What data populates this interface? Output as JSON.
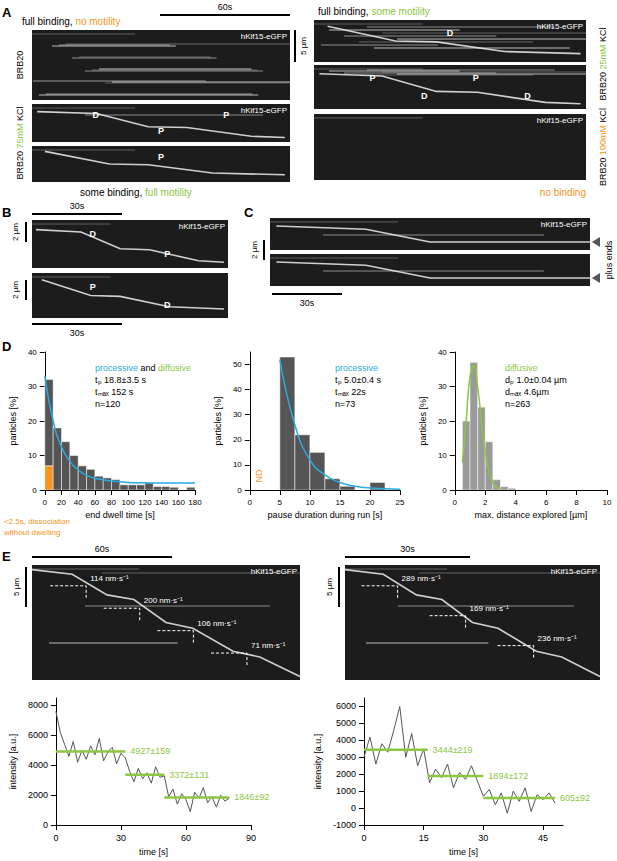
{
  "figure": {
    "A": {
      "letter": "A",
      "time_scale": "60s",
      "space_scale": "5 µm",
      "left_header": [
        {
          "text": "full binding, "
        },
        {
          "text": "no motility",
          "color": "#f7941d"
        }
      ],
      "left_footer": [
        {
          "text": "some binding, "
        },
        {
          "text": "full motility",
          "color": "#8dc63f"
        }
      ],
      "right_header": [
        {
          "text": "full binding, "
        },
        {
          "text": "some motility",
          "color": "#8dc63f"
        }
      ],
      "right_footer": [
        {
          "text": "no binding",
          "color": "#f7941d"
        }
      ],
      "left_conditions": [
        [
          {
            "text": "BRB20"
          }
        ],
        [
          {
            "text": "BRB20 "
          },
          {
            "text": "75mM",
            "color": "#8dc63f"
          },
          {
            "text": " KCl"
          }
        ]
      ],
      "right_conditions": [
        [
          {
            "text": "BRB20 "
          },
          {
            "text": "25mM",
            "color": "#8dc63f"
          },
          {
            "text": " KCl"
          }
        ],
        [
          {
            "text": "BRB20 "
          },
          {
            "text": "100mM",
            "color": "#f7941d"
          },
          {
            "text": " KCl"
          }
        ]
      ],
      "left_kymographs": [
        {
          "label": "hKif15-eGFP",
          "marks": []
        },
        {
          "label": "hKif15-eGFP",
          "marks": [
            "D",
            "P",
            "P"
          ]
        },
        {
          "marks": [
            "P"
          ]
        }
      ],
      "right_kymographs": [
        {
          "label": "hKif15-eGFP",
          "marks": [
            "D"
          ]
        },
        {
          "marks": [
            "P",
            "D",
            "P",
            "D"
          ]
        },
        {
          "label": "hKif15-eGFP",
          "marks": []
        }
      ]
    },
    "B": {
      "letter": "B",
      "time_scale": "30s",
      "space_scale": "2 µm",
      "kymographs": [
        {
          "label": "hKif15-eGFP",
          "marks": [
            "D",
            "P"
          ]
        },
        {
          "marks": [
            "P",
            "D"
          ]
        }
      ]
    },
    "C": {
      "letter": "C",
      "time_scale": "30s",
      "space_scale": "2 µm",
      "end_label": "plus ends",
      "kymographs": [
        {
          "label": "hKif15-eGFP",
          "marks": []
        },
        {
          "marks": []
        }
      ]
    },
    "D": {
      "letter": "D"
    },
    "E": {
      "letter": "E",
      "kymographs": [
        {
          "label": "hKif15-eGFP",
          "time_scale": "60s",
          "space_scale": "5 µm",
          "velocities": [
            "114 nm·s⁻¹",
            "200 nm·s⁻¹",
            "106 nm·s⁻¹",
            "71 nm·s⁻¹"
          ]
        },
        {
          "label": "hKif15-eGFP",
          "time_scale": "30s",
          "space_scale": "5 µm",
          "velocities": [
            "289 nm·s⁻¹",
            "169 nm·s⁻¹",
            "236 nm·s⁻¹"
          ]
        }
      ]
    }
  },
  "chart_data": [
    {
      "type": "histogram",
      "x_label": "end dwell time [s]",
      "y_label": "particles [%]",
      "bins": [
        0,
        10,
        20,
        30,
        40,
        50,
        60,
        70,
        80,
        90,
        100,
        110,
        120,
        130,
        140,
        150,
        160,
        170,
        180
      ],
      "stacked": true,
      "series": [
        {
          "color": "#f7941d",
          "values": [
            7,
            0,
            0,
            0,
            0,
            0,
            0,
            0,
            0,
            0,
            0,
            0,
            0,
            0,
            0,
            0,
            0,
            0
          ]
        },
        {
          "color": "#555555",
          "values": [
            25,
            18,
            14,
            10,
            7,
            6,
            4,
            3.5,
            3,
            1.5,
            1.5,
            1.5,
            2,
            1,
            1,
            0.8,
            0,
            0.8
          ]
        }
      ],
      "fit": {
        "color": "#29abe2",
        "x": [
          0,
          10,
          20,
          30,
          40,
          50,
          60,
          80,
          100,
          120,
          140,
          160,
          180
        ],
        "y": [
          33,
          20,
          12.5,
          8.3,
          5.8,
          4.3,
          3.4,
          2.6,
          2.2,
          2.1,
          2,
          2,
          2
        ]
      },
      "xlim": [
        0,
        180
      ],
      "xticks": [
        0,
        20,
        40,
        60,
        80,
        100,
        120,
        140,
        160,
        180
      ],
      "ylim": [
        0,
        40
      ],
      "yticks": [
        0,
        10,
        20,
        30,
        40
      ],
      "grid": false,
      "annotations": [
        [
          {
            "text": "processive",
            "color": "#29abe2"
          },
          {
            "text": " and "
          },
          {
            "text": "diffusive",
            "color": "#8dc63f"
          }
        ],
        [
          {
            "text": "tₚ 18.8±3.5 s"
          }
        ],
        [
          {
            "text": "tₘₐₓ 152 s"
          }
        ],
        [
          {
            "text": "n=120"
          }
        ]
      ],
      "axis_note": {
        "color": "#f7941d",
        "lines": [
          "<2.5s, dissociation",
          "without dwelling"
        ]
      }
    },
    {
      "type": "histogram",
      "x_label": "pause duration during run [s]",
      "y_label": "particles [%]",
      "bins": [
        0,
        2.5,
        5,
        7.5,
        10,
        12.5,
        15,
        17.5,
        20,
        22.5,
        25
      ],
      "stacked": false,
      "series": [
        {
          "color": "#555555",
          "values": [
            0,
            0,
            53,
            22,
            15,
            4.5,
            1.5,
            0,
            3,
            0
          ]
        }
      ],
      "fit": {
        "color": "#29abe2",
        "x": [
          5,
          7.5,
          10,
          12.5,
          15,
          17.5,
          20,
          25
        ],
        "y": [
          52,
          26,
          12,
          6,
          3,
          1.5,
          0.8,
          0.3
        ]
      },
      "xlim": [
        0,
        25
      ],
      "xticks": [
        0,
        5,
        10,
        15,
        20,
        25
      ],
      "ylim": [
        0,
        55
      ],
      "yticks": [
        0,
        10,
        20,
        30,
        40,
        50
      ],
      "grid": false,
      "annotations": [
        [
          {
            "text": "processive",
            "color": "#29abe2"
          }
        ],
        [
          {
            "text": "tₚ 5.0±0.4 s"
          }
        ],
        [
          {
            "text": "tₘₐₓ 22s"
          }
        ],
        [
          {
            "text": "n=73"
          }
        ]
      ],
      "axis_note": {
        "color": "#f7941d",
        "lines": [
          "ND"
        ]
      }
    },
    {
      "type": "histogram",
      "x_label": "max. distance explored [µm]",
      "y_label": "particles [%]",
      "bins": [
        0,
        0.5,
        1,
        1.5,
        2,
        2.5,
        3,
        3.5,
        4,
        4.5,
        5,
        5.5,
        6,
        6.5,
        7,
        7.5,
        8,
        8.5,
        9,
        9.5,
        10
      ],
      "stacked": false,
      "series": [
        {
          "color": "#9a9a9a",
          "values": [
            0,
            20,
            37,
            24,
            14,
            3,
            1,
            0.5,
            0,
            0,
            0,
            0,
            0,
            0,
            0,
            0,
            0,
            0,
            0,
            0
          ]
        }
      ],
      "fit": {
        "color": "#8dc63f",
        "x": [
          0.5,
          0.75,
          1,
          1.25,
          1.5,
          1.75,
          2,
          2.5,
          3
        ],
        "y": [
          8,
          20,
          33,
          36,
          30,
          20,
          11,
          2,
          0.3
        ]
      },
      "xlim": [
        0,
        10
      ],
      "xticks": [
        0,
        2,
        4,
        6,
        8,
        10
      ],
      "ylim": [
        0,
        40
      ],
      "yticks": [
        0,
        10,
        20,
        30,
        40
      ],
      "grid": false,
      "annotations": [
        [
          {
            "text": "diffusive",
            "color": "#8dc63f"
          }
        ],
        [
          {
            "text": "dₚ 1.0±0.04 µm"
          }
        ],
        [
          {
            "text": "dₘₐₓ 4.6µm"
          }
        ],
        [
          {
            "text": "n=263"
          }
        ]
      ]
    },
    {
      "type": "line",
      "x_label": "time [s]",
      "y_label": "intensity [a.u.]",
      "color": "#555555",
      "x": [
        0,
        2,
        4,
        6,
        8,
        10,
        12,
        14,
        16,
        18,
        20,
        22,
        24,
        26,
        28,
        30,
        32,
        34,
        36,
        38,
        40,
        42,
        44,
        46,
        48,
        50,
        52,
        54,
        56,
        58,
        60,
        62,
        64,
        66,
        68,
        70,
        72,
        74,
        76,
        78,
        80
      ],
      "values": [
        7600,
        6200,
        5400,
        4600,
        5600,
        4200,
        5000,
        4400,
        5300,
        4700,
        5800,
        4300,
        4900,
        5200,
        4100,
        4800,
        4500,
        3600,
        2900,
        3800,
        3100,
        3500,
        2800,
        3900,
        3200,
        3300,
        1900,
        2400,
        1400,
        2100,
        1700,
        900,
        2200,
        1800,
        2500,
        1500,
        1900,
        1200,
        2000,
        1600,
        1800
      ],
      "steps": {
        "color": "#8dc63f",
        "segments": [
          {
            "start": 0,
            "end": 32,
            "value": 4927,
            "label": "4927±159"
          },
          {
            "start": 32,
            "end": 50,
            "value": 3372,
            "label": "3372±131"
          },
          {
            "start": 50,
            "end": 80,
            "value": 1846,
            "label": "1846±92"
          }
        ]
      },
      "xlim": [
        0,
        90
      ],
      "xticks": [
        0,
        30,
        60,
        90
      ],
      "ylim": [
        0,
        8500
      ],
      "yticks": [
        0,
        2000,
        4000,
        6000,
        8000
      ],
      "grid": false
    },
    {
      "type": "line",
      "x_label": "time [s]",
      "y_label": "intensity [a.u.]",
      "color": "#555555",
      "x": [
        0,
        1.5,
        3,
        4.5,
        6,
        7.5,
        9,
        10.5,
        12,
        13.5,
        15,
        16.5,
        18,
        19.5,
        21,
        22.5,
        24,
        25.5,
        27,
        28.5,
        30,
        31.5,
        33,
        34.5,
        36,
        37.5,
        39,
        40.5,
        42,
        43.5,
        45,
        46.5,
        48
      ],
      "values": [
        3000,
        4200,
        2600,
        3800,
        3300,
        4600,
        6000,
        3000,
        4400,
        2500,
        3500,
        1500,
        2300,
        1800,
        2600,
        1200,
        2100,
        1700,
        2500,
        1600,
        700,
        1100,
        200,
        900,
        -300,
        1000,
        400,
        1200,
        -200,
        800,
        500,
        900,
        300
      ],
      "steps": {
        "color": "#8dc63f",
        "segments": [
          {
            "start": 0,
            "end": 16,
            "value": 3444,
            "label": "3444±219"
          },
          {
            "start": 16,
            "end": 30,
            "value": 1894,
            "label": "1894±172"
          },
          {
            "start": 30,
            "end": 48,
            "value": 605,
            "label": "605±92"
          }
        ]
      },
      "xlim": [
        0,
        50
      ],
      "xticks": [
        0,
        15,
        30,
        45
      ],
      "ylim": [
        -1000,
        6500
      ],
      "yticks": [
        -1000,
        0,
        1000,
        2000,
        3000,
        4000,
        5000,
        6000
      ],
      "grid": false
    }
  ]
}
